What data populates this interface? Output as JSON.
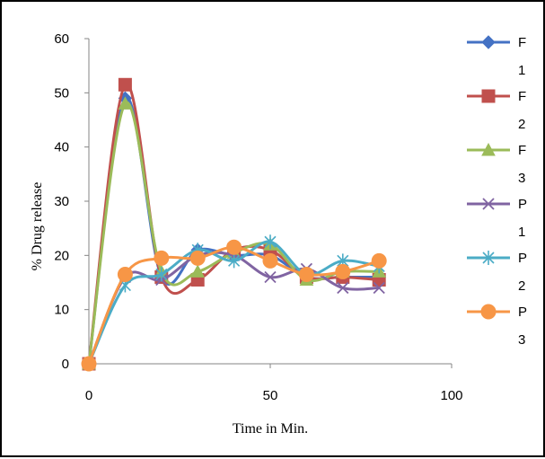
{
  "chart_data": {
    "type": "line",
    "xlabel": "Time in Min.",
    "ylabel": "% Drug release",
    "xlim": [
      0,
      100
    ],
    "ylim": [
      0,
      60
    ],
    "xticks": [
      0,
      50,
      100
    ],
    "yticks": [
      0,
      10,
      20,
      30,
      40,
      50,
      60
    ],
    "grid": false,
    "smooth": true,
    "legend_position": "right",
    "series": [
      {
        "name": "F1",
        "legend_lines": [
          "F",
          "1"
        ],
        "marker": "diamond",
        "color": "#4472C4",
        "x": [
          0,
          10,
          20,
          30,
          40,
          50,
          60,
          70,
          80
        ],
        "y": [
          0,
          49,
          16,
          21,
          20,
          20,
          16,
          16,
          16
        ]
      },
      {
        "name": "F2",
        "legend_lines": [
          "F",
          "2"
        ],
        "marker": "square",
        "color": "#C0504D",
        "x": [
          0,
          10,
          20,
          30,
          40,
          50,
          60,
          70,
          80
        ],
        "y": [
          0,
          51.5,
          16,
          15.5,
          21,
          21,
          16,
          16,
          15.5
        ]
      },
      {
        "name": "F3",
        "legend_lines": [
          "F",
          "3"
        ],
        "marker": "triangle",
        "color": "#9BBB59",
        "x": [
          0,
          10,
          20,
          30,
          40,
          50,
          60,
          70,
          80
        ],
        "y": [
          0,
          48,
          17,
          17,
          20.5,
          22,
          15.5,
          17,
          17
        ]
      },
      {
        "name": "P1",
        "legend_lines": [
          "P",
          "1"
        ],
        "marker": "x",
        "color": "#8064A2",
        "x": [
          0,
          10,
          20,
          30,
          40,
          50,
          60,
          70,
          80
        ],
        "y": [
          0,
          16,
          15.5,
          20,
          20,
          16,
          17.5,
          14,
          14
        ]
      },
      {
        "name": "P2",
        "legend_lines": [
          "P",
          "2"
        ],
        "marker": "star",
        "color": "#4BACC6",
        "x": [
          0,
          10,
          20,
          30,
          40,
          50,
          60,
          70,
          80
        ],
        "y": [
          0,
          14.5,
          16.5,
          21,
          19,
          22.5,
          16.5,
          19,
          18
        ]
      },
      {
        "name": "P3",
        "legend_lines": [
          "P",
          "3"
        ],
        "marker": "circle",
        "color": "#F79646",
        "x": [
          0,
          10,
          20,
          30,
          40,
          50,
          60,
          70,
          80
        ],
        "y": [
          0,
          16.5,
          19.5,
          19.5,
          21.5,
          19,
          16.5,
          17,
          19
        ]
      }
    ]
  }
}
